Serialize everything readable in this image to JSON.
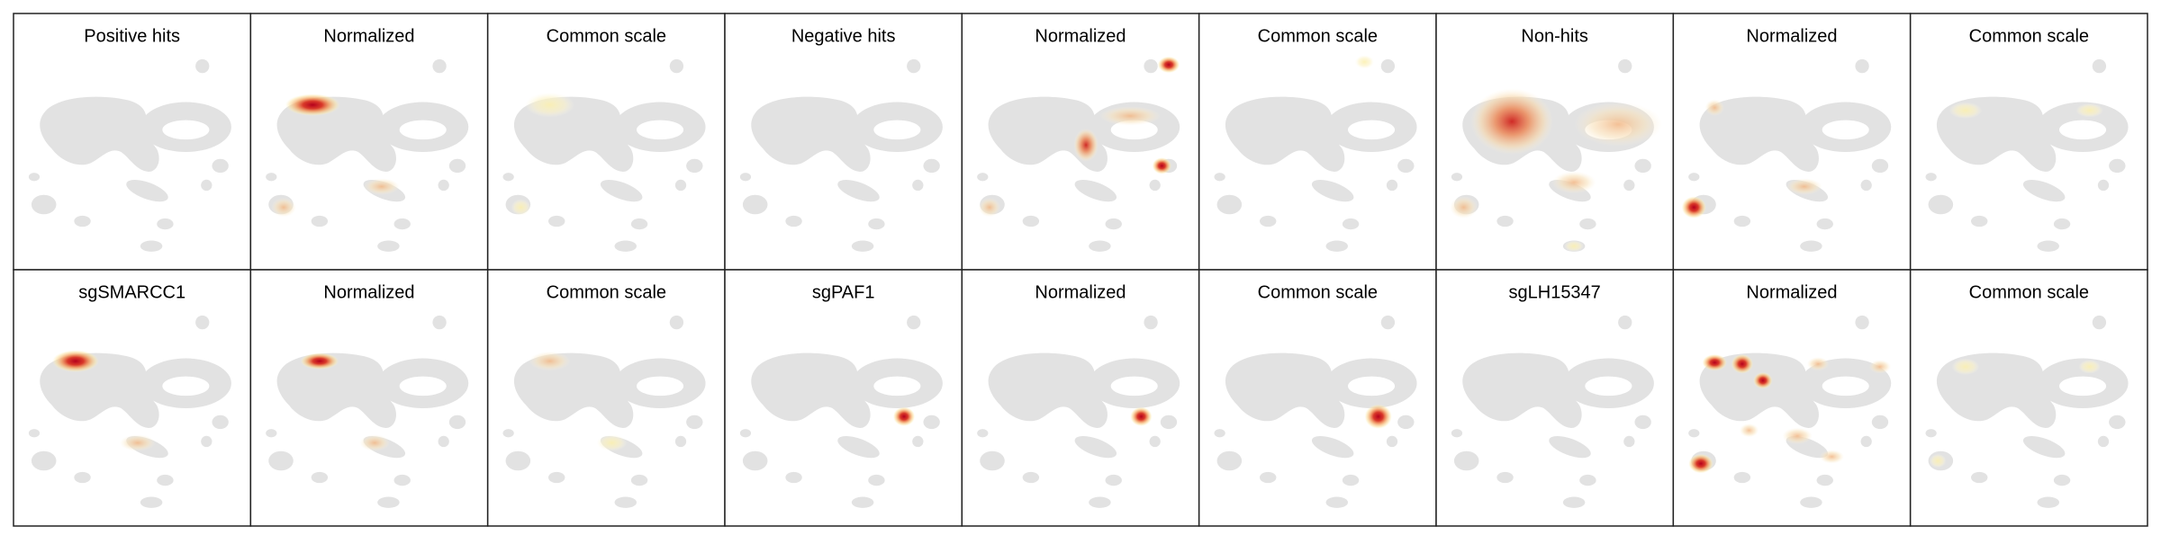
{
  "panels": [
    {
      "title": "Positive hits"
    },
    {
      "title": "Normalized"
    },
    {
      "title": "Common scale"
    },
    {
      "title": "Negative hits"
    },
    {
      "title": "Normalized"
    },
    {
      "title": "Common scale"
    },
    {
      "title": "Non-hits"
    },
    {
      "title": "Normalized"
    },
    {
      "title": "Common scale"
    },
    {
      "title": "sgSMARCC1"
    },
    {
      "title": "Normalized"
    },
    {
      "title": "Common scale"
    },
    {
      "title": "sgPAF1"
    },
    {
      "title": "Normalized"
    },
    {
      "title": "Common scale"
    },
    {
      "title": "sgLH15347"
    },
    {
      "title": "Normalized"
    },
    {
      "title": "Common scale"
    }
  ]
}
